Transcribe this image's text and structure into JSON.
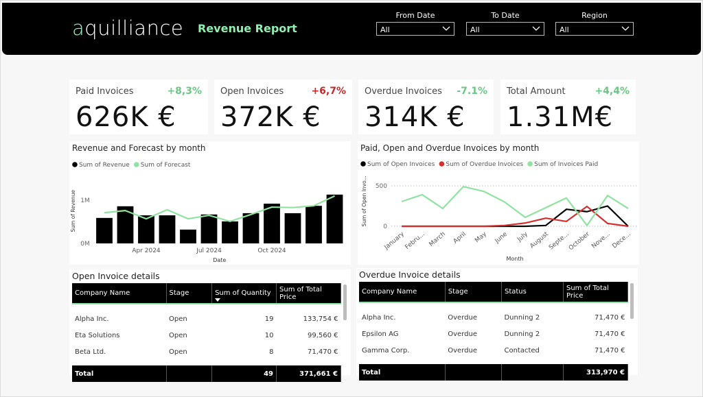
{
  "header": {
    "logo": "aquilliance",
    "title": "Revenue Report",
    "filters": [
      {
        "label": "From Date",
        "value": "All"
      },
      {
        "label": "To Date",
        "value": "All"
      },
      {
        "label": "Region",
        "value": "All"
      }
    ]
  },
  "kpis": [
    {
      "label": "Paid Invoices",
      "value": "626K €",
      "change": "+8,3%",
      "change_color": "#6cc784"
    },
    {
      "label": "Open Invoices",
      "value": "372K €",
      "change": "+6,7%",
      "change_color": "#c62828"
    },
    {
      "label": "Overdue Invoices",
      "value": "314K €",
      "change": "-7.1%",
      "change_color": "#6cc784"
    },
    {
      "label": "Total Amount",
      "value": "1.31M€",
      "change": "+4,4%",
      "change_color": "#6cc784"
    }
  ],
  "chart_data": [
    {
      "type": "bar",
      "title": "Revenue and Forecast by month",
      "x_label": "Date",
      "y_label": "Sum of Revenue",
      "categories": [
        null,
        null,
        "Apr 2024",
        null,
        null,
        "Jul 2024",
        null,
        null,
        "Oct 2024",
        null,
        null,
        null
      ],
      "series": [
        {
          "name": "Sum of Revenue",
          "type": "bar",
          "color": "#000000",
          "values": [
            0.59,
            0.86,
            0.65,
            0.65,
            0.32,
            0.67,
            0.51,
            0.7,
            0.92,
            0.7,
            0.87,
            1.13
          ]
        },
        {
          "name": "Sum of Forecast",
          "type": "line",
          "color": "#8fe3a0",
          "values": [
            0.71,
            0.76,
            0.57,
            0.78,
            0.57,
            0.65,
            0.51,
            0.67,
            0.84,
            0.83,
            0.87,
            1.1
          ]
        }
      ],
      "ylim": [
        0,
        1.5
      ],
      "yticks": [
        {
          "value": 0,
          "label": "0M"
        },
        {
          "value": 1,
          "label": "1M"
        }
      ],
      "grid": false
    },
    {
      "type": "line",
      "title": "Paid, Open and Overdue Invoices by month",
      "x_label": "Month",
      "y_label": "Sum of Open Invo...",
      "categories": [
        "January",
        "Febru...",
        "March",
        "April",
        "May",
        "June",
        "July",
        "August",
        "Septe...",
        "October",
        "Nove...",
        "Dece..."
      ],
      "series": [
        {
          "name": "Sum of Open Invoices",
          "color": "#000000",
          "values": [
            0,
            0,
            0,
            0,
            0,
            0,
            0,
            10,
            210,
            180,
            250,
            0
          ]
        },
        {
          "name": "Sum of Overdue Invoices",
          "color": "#d32f2f",
          "values": [
            0,
            0,
            0,
            0,
            0,
            10,
            40,
            100,
            60,
            245,
            35,
            0
          ]
        },
        {
          "name": "Sum of Invoices Paid",
          "color": "#8fe3a0",
          "values": [
            305,
            390,
            220,
            490,
            430,
            300,
            110,
            230,
            350,
            10,
            380,
            220
          ]
        }
      ],
      "ylim": [
        0,
        620
      ],
      "yticks": [
        0,
        500
      ],
      "grid": true
    }
  ],
  "tables": {
    "open": {
      "title": "Open Invoice details",
      "columns": [
        "Company Name",
        "Stage",
        "Sum of Quantity",
        "Sum of Total Price"
      ],
      "rows": [
        [
          "Alpha Inc.",
          "Open",
          19,
          "133,754 €"
        ],
        [
          "Eta Solutions",
          "Open",
          10,
          "99,560 €"
        ],
        [
          "Beta Ltd.",
          "Open",
          8,
          "71,470 €"
        ]
      ],
      "total": [
        "Total",
        null,
        49,
        "371,661 €"
      ]
    },
    "overdue": {
      "title": "Overdue Invoice details",
      "columns": [
        "Company Name",
        "Stage",
        "Status",
        "Sum of Total Price"
      ],
      "rows": [
        [
          "Alpha Inc.",
          "Overdue",
          "Dunning 2",
          "71,470 €"
        ],
        [
          "Epsilon AG",
          "Overdue",
          "Dunning 2",
          "71,470 €"
        ],
        [
          "Gamma Corp.",
          "Overdue",
          "Contacted",
          "71,470 €"
        ]
      ],
      "total": [
        "Total",
        null,
        null,
        "313,970 €"
      ]
    }
  }
}
